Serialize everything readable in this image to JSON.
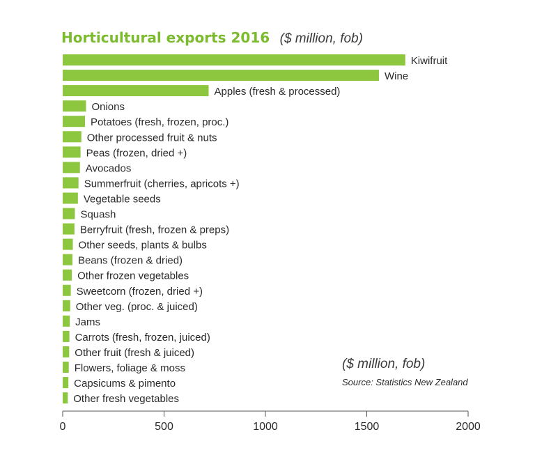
{
  "colors": {
    "bar": "#8dc63f",
    "title": "#7cbb2e",
    "axis": "#555555",
    "text": "#2a2a2a"
  },
  "chart_data": {
    "type": "bar",
    "orientation": "horizontal",
    "title": "Horticultural exports 2016",
    "subtitle": "($ million, fob)",
    "unit_note": "($ million, fob)",
    "source": "Source: Statistics New Zealand",
    "xlim": [
      0,
      2000
    ],
    "xticks": [
      0,
      500,
      1000,
      1500,
      2000
    ],
    "grid": false,
    "categories": [
      "Kiwifruit",
      "Wine",
      "Apples (fresh & processed)",
      "Onions",
      "Potatoes (fresh, frozen, proc.)",
      "Other processed fruit & nuts",
      "Peas (frozen, dried +)",
      "Avocados",
      "Summerfruit (cherries, apricots +)",
      "Vegetable seeds",
      "Squash",
      "Berryfruit (fresh, frozen & preps)",
      "Other seeds, plants & bulbs",
      "Beans (frozen & dried)",
      "Other frozen vegetables",
      "Sweetcorn (frozen, dried +)",
      "Other veg. (proc. & juiced)",
      "Jams",
      "Carrots (fresh, frozen, juiced)",
      "Other fruit (fresh & juiced)",
      "Flowers, foliage & moss",
      "Capsicums & pimento",
      "Other fresh vegetables"
    ],
    "values": [
      1690,
      1560,
      720,
      115,
      110,
      92,
      88,
      85,
      78,
      75,
      60,
      58,
      50,
      48,
      45,
      40,
      37,
      35,
      33,
      32,
      30,
      28,
      25
    ]
  }
}
